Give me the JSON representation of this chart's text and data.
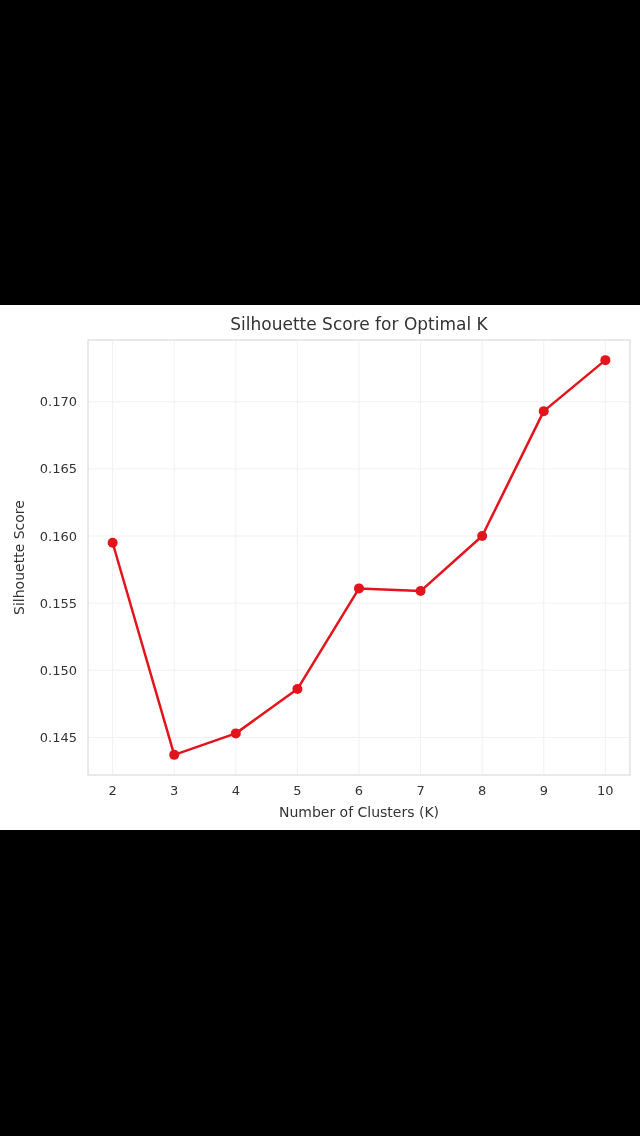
{
  "chart_data": {
    "type": "line",
    "title": "Silhouette Score for Optimal K",
    "xlabel": "Number of Clusters (K)",
    "ylabel": "Silhouette Score",
    "x": [
      2,
      3,
      4,
      5,
      6,
      7,
      8,
      9,
      10
    ],
    "series": [
      {
        "color": "#e3141c",
        "values": [
          0.1595,
          0.1437,
          0.1453,
          0.1486,
          0.1561,
          0.1559,
          0.16,
          0.1693,
          0.1731
        ]
      }
    ],
    "xlim": [
      1.6,
      10.4
    ],
    "xticks": [
      2,
      3,
      4,
      5,
      6,
      7,
      8,
      9,
      10
    ],
    "ylim": [
      0.1422,
      0.1746
    ],
    "yticks": [
      {
        "value": 0.145,
        "label": "0.145"
      },
      {
        "value": 0.15,
        "label": "0.150"
      },
      {
        "value": 0.155,
        "label": "0.155"
      },
      {
        "value": 0.16,
        "label": "0.160"
      },
      {
        "value": 0.165,
        "label": "0.165"
      },
      {
        "value": 0.17,
        "label": "0.170"
      }
    ],
    "grid": true,
    "marker": "circle",
    "line_style": "solid"
  }
}
